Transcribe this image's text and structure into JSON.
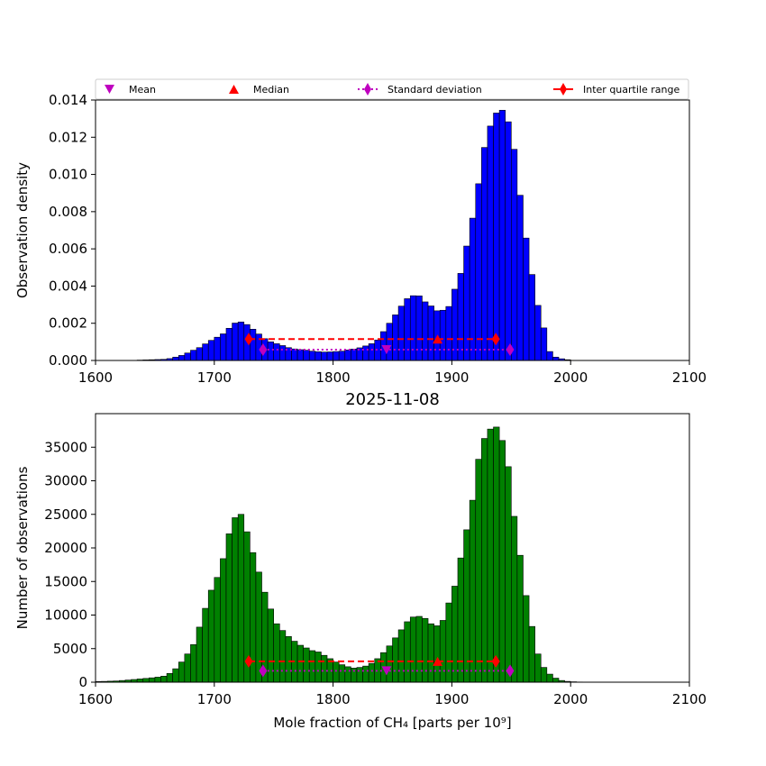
{
  "legend": {
    "mean": "Mean",
    "median": "Median",
    "std": "Standard deviation",
    "iqr": "Inter quartile range"
  },
  "colors": {
    "top_bars": "#0000ff",
    "bottom_bars": "#008000",
    "mean_marker": "#bf00bf",
    "median_marker": "#ff0000",
    "std_line": "#bf00bf",
    "iqr_line": "#ff0000"
  },
  "chart_data": [
    {
      "type": "bar",
      "xlim": [
        1600,
        2100
      ],
      "ylim": [
        0,
        0.014
      ],
      "xticks": [
        "1600",
        "1700",
        "1800",
        "1900",
        "2000",
        "2100"
      ],
      "yticks": [
        "0.000",
        "0.002",
        "0.004",
        "0.006",
        "0.008",
        "0.010",
        "0.012",
        "0.014"
      ],
      "xlabel": "",
      "ylabel": "Observation density",
      "title": "",
      "bin_start": 1635,
      "bin_width": 5,
      "values": [
        2e-05,
        3e-05,
        4e-05,
        5e-05,
        6e-05,
        0.0001,
        0.00018,
        0.00027,
        0.0004,
        0.00055,
        0.00069,
        0.00089,
        0.00108,
        0.00125,
        0.00143,
        0.00173,
        0.00201,
        0.00207,
        0.00193,
        0.00168,
        0.00142,
        0.00117,
        0.001,
        0.0009,
        0.0008,
        0.00069,
        0.00062,
        0.00058,
        0.00055,
        0.0005,
        0.00047,
        0.00045,
        0.00046,
        0.00048,
        0.0005,
        0.00056,
        0.00061,
        0.00068,
        0.00078,
        0.0009,
        0.0011,
        0.00155,
        0.002,
        0.00245,
        0.00292,
        0.00332,
        0.00348,
        0.00347,
        0.00315,
        0.00293,
        0.00267,
        0.0027,
        0.0029,
        0.00383,
        0.00468,
        0.00615,
        0.00765,
        0.0095,
        0.01145,
        0.0126,
        0.0133,
        0.01345,
        0.01283,
        0.01135,
        0.00888,
        0.00658,
        0.00462,
        0.00296,
        0.00175,
        0.00048,
        0.00018,
        9e-05,
        4e-05
      ],
      "stats": {
        "mean": 1845,
        "median": 1888,
        "std_range": [
          1741,
          1949
        ],
        "iqr_range": [
          1729,
          1937
        ],
        "mean_y": 0.00058,
        "median_y": 0.00115,
        "std_y": 0.00058,
        "iqr_y": 0.00115
      }
    },
    {
      "type": "bar",
      "xlim": [
        1600,
        2100
      ],
      "ylim": [
        0,
        40000
      ],
      "xticks": [
        "1600",
        "1700",
        "1800",
        "1900",
        "2000",
        "2100"
      ],
      "yticks": [
        "0",
        "5000",
        "10000",
        "15000",
        "20000",
        "25000",
        "30000",
        "35000"
      ],
      "xlabel": "Mole fraction of CH₄ [parts per 10⁹]",
      "ylabel": "Number of observations",
      "title": "2025-11-08",
      "bin_start": 1600,
      "bin_width": 5,
      "values": [
        100,
        120,
        150,
        180,
        250,
        320,
        400,
        480,
        560,
        650,
        750,
        900,
        1300,
        2000,
        3000,
        4200,
        5600,
        8200,
        11000,
        13700,
        15600,
        18400,
        22100,
        24500,
        25000,
        22400,
        19300,
        16400,
        13400,
        10900,
        8700,
        7700,
        6800,
        6100,
        5500,
        5100,
        4700,
        4500,
        4000,
        3500,
        3000,
        2600,
        2300,
        2100,
        2200,
        2400,
        2800,
        3500,
        4400,
        5400,
        6600,
        7800,
        9000,
        9700,
        9800,
        9500,
        8700,
        8400,
        9200,
        11800,
        14300,
        18500,
        22700,
        27100,
        33200,
        36300,
        37700,
        38000,
        36000,
        32100,
        24700,
        18900,
        12900,
        8300,
        4200,
        2200,
        1200,
        600,
        250,
        120,
        60,
        30
      ],
      "stats": {
        "mean": 1845,
        "median": 1888,
        "std_range": [
          1741,
          1949
        ],
        "iqr_range": [
          1729,
          1937
        ],
        "mean_y": 1700,
        "median_y": 3100,
        "std_y": 1700,
        "iqr_y": 3100
      }
    }
  ]
}
